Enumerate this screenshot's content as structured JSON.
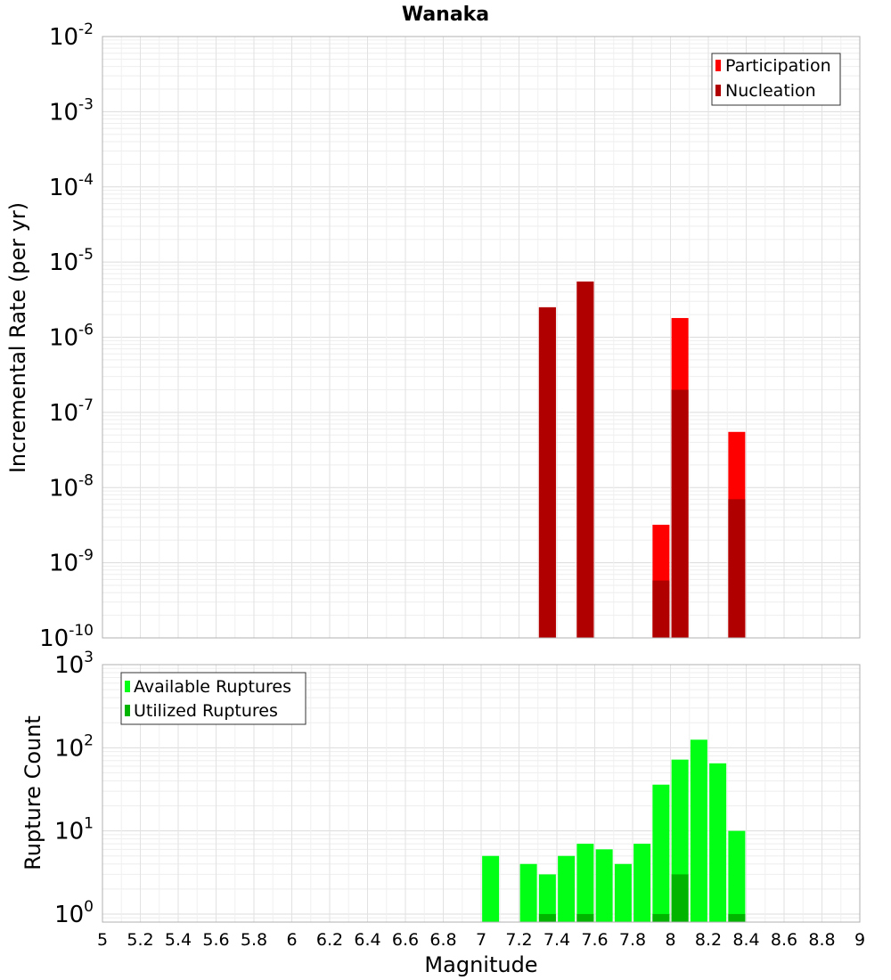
{
  "chart_data": [
    {
      "type": "bar",
      "title": "Wanaka",
      "xlabel": "Magnitude",
      "ylabel": "Incremental Rate (per yr)",
      "yscale": "log",
      "ylim": [
        1e-10,
        0.01
      ],
      "xlim": [
        5,
        9
      ],
      "grid": true,
      "legend_position": "top-right",
      "y_tick_labels": [
        {
          "base": "10",
          "exp": "-2"
        },
        {
          "base": "10",
          "exp": "-3"
        },
        {
          "base": "10",
          "exp": "-4"
        },
        {
          "base": "10",
          "exp": "-5"
        },
        {
          "base": "10",
          "exp": "-6"
        },
        {
          "base": "10",
          "exp": "-7"
        },
        {
          "base": "10",
          "exp": "-8"
        },
        {
          "base": "10",
          "exp": "-9"
        },
        {
          "base": "10",
          "exp": "-10"
        }
      ],
      "series": [
        {
          "name": "Participation",
          "color": "#ff0000",
          "x": [
            7.35,
            7.55,
            7.95,
            8.05,
            8.35
          ],
          "values": [
            2.5e-06,
            5.5e-06,
            3.2e-09,
            1.8e-06,
            5.5e-08
          ]
        },
        {
          "name": "Nucleation",
          "color": "#b00000",
          "x": [
            7.35,
            7.55,
            7.95,
            8.05,
            8.35
          ],
          "values": [
            2.5e-06,
            5.5e-06,
            5.8e-10,
            2e-07,
            7e-09
          ]
        }
      ]
    },
    {
      "type": "bar",
      "xlabel": "Magnitude",
      "ylabel": "Rupture Count",
      "yscale": "log",
      "ylim": [
        0.8,
        1000
      ],
      "xlim": [
        5,
        9
      ],
      "grid": true,
      "legend_position": "top-left",
      "y_tick_labels": [
        {
          "base": "10",
          "exp": "3"
        },
        {
          "base": "10",
          "exp": "2"
        },
        {
          "base": "10",
          "exp": "1"
        },
        {
          "base": "10",
          "exp": "0"
        }
      ],
      "x_tick_labels": [
        "5",
        "5.2",
        "5.4",
        "5.6",
        "5.8",
        "6",
        "6.2",
        "6.4",
        "6.6",
        "6.8",
        "7",
        "7.2",
        "7.4",
        "7.6",
        "7.8",
        "8",
        "8.2",
        "8.4",
        "8.6",
        "8.8",
        "9"
      ],
      "series": [
        {
          "name": "Available Ruptures",
          "color": "#00ff14",
          "x": [
            7.05,
            7.25,
            7.35,
            7.45,
            7.55,
            7.65,
            7.75,
            7.85,
            7.95,
            8.05,
            8.15,
            8.25,
            8.35
          ],
          "values": [
            5,
            4,
            3,
            5,
            7,
            6,
            4,
            7,
            36,
            72,
            125,
            65,
            10
          ]
        },
        {
          "name": "Utilized Ruptures",
          "color": "#00b400",
          "x": [
            7.35,
            7.55,
            7.95,
            8.05,
            8.35
          ],
          "values": [
            1,
            1,
            1,
            3,
            1
          ]
        }
      ]
    }
  ]
}
